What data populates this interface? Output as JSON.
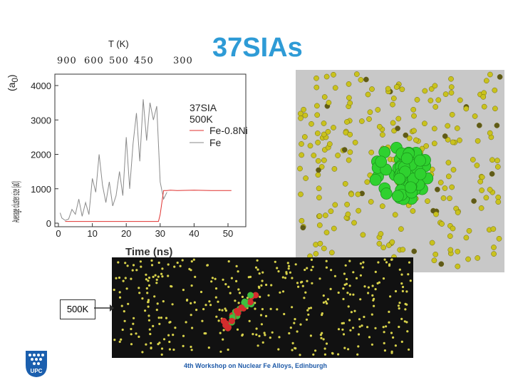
{
  "slide": {
    "title": "37SIAs",
    "footer": "4th Workshop on Nuclear Fe Alloys, Edinburgh",
    "temperature_axis": {
      "title": "T (K)",
      "ticks": [
        "900",
        "600",
        "500",
        "450",
        "300"
      ]
    },
    "state_label": "500K",
    "y_axis_garbled": "Average cluster size (a0)"
  },
  "colors": {
    "title": "#2e9bd6",
    "fe_line": "#8a8a8a",
    "feni_line": "#e0312f",
    "atom_yellow": "#c9c21e",
    "cluster_green": "#2fd12f",
    "footer": "#1e5aa8"
  },
  "chart_data": {
    "type": "line",
    "title": "",
    "xlabel": "Time (ns)",
    "ylabel": "(a0)",
    "xlim": [
      0,
      55
    ],
    "ylim": [
      0,
      4000
    ],
    "xticks": [
      "0",
      "10",
      "20",
      "30",
      "40",
      "50"
    ],
    "yticks": [
      "0",
      "1000",
      "2000",
      "3000",
      "4000"
    ],
    "legend": {
      "placement": "top-right",
      "header": [
        "37SIA",
        "500K"
      ],
      "entries": [
        "Fe-0.8Ni",
        "Fe"
      ]
    },
    "series": [
      {
        "name": "Fe",
        "color": "#8a8a8a",
        "x": [
          0.5,
          1,
          2,
          3,
          4,
          5,
          6,
          7,
          8,
          9,
          10,
          11,
          12,
          13,
          14,
          15,
          16,
          17,
          18,
          19,
          20,
          21,
          22,
          23,
          24,
          25,
          26,
          27,
          28,
          29,
          30,
          31,
          32
        ],
        "y": [
          300,
          150,
          80,
          120,
          400,
          260,
          700,
          200,
          600,
          250,
          1300,
          900,
          2000,
          1100,
          600,
          1200,
          500,
          800,
          1500,
          800,
          2500,
          1000,
          2300,
          3200,
          1800,
          3600,
          2400,
          3500,
          3000,
          3400,
          1200,
          700,
          900
        ]
      },
      {
        "name": "Fe-0.8Ni",
        "color": "#e0312f",
        "x": [
          2,
          5,
          10,
          15,
          20,
          25,
          29.5,
          30,
          30.5,
          31,
          32,
          33,
          35,
          40,
          45,
          50,
          51
        ],
        "y": [
          50,
          50,
          50,
          50,
          50,
          50,
          50,
          250,
          600,
          950,
          950,
          960,
          950,
          960,
          950,
          950,
          950
        ]
      }
    ]
  }
}
